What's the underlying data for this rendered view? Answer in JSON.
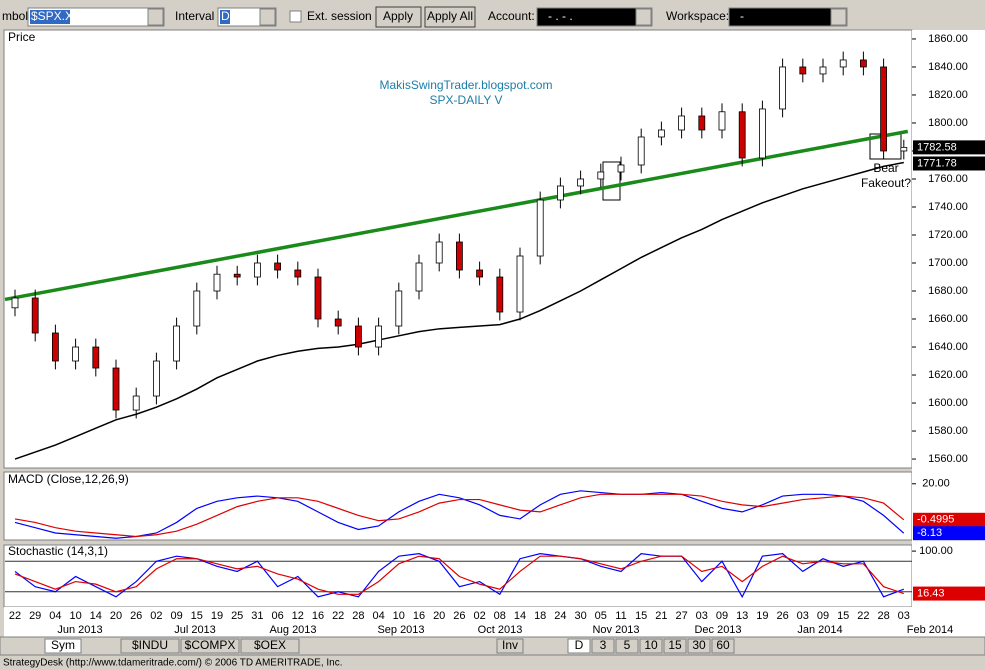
{
  "toolbar": {
    "symbol_label": "mbol",
    "symbol": "$SPX.X",
    "interval_label": "Interval",
    "interval": "D",
    "ext_session": "Ext. session",
    "apply": "Apply",
    "apply_all": "Apply All",
    "account_label": "Account:",
    "account": "-   .   -   .",
    "workspace_label": "Workspace:",
    "workspace": "-"
  },
  "chart_data": {
    "type": "candlestick",
    "panel_label": "Price",
    "annotation": "MakisSwingTrader.blogspot.com",
    "subtitle": "SPX-DAILY  V",
    "note": [
      "Bear",
      "Fakeout?"
    ],
    "categories": [
      "22",
      "29",
      "04",
      "10",
      "14",
      "20",
      "26",
      "02",
      "09",
      "15",
      "19",
      "25",
      "31",
      "06",
      "12",
      "16",
      "22",
      "28",
      "04",
      "10",
      "16",
      "20",
      "26",
      "02",
      "08",
      "14",
      "18",
      "24",
      "30",
      "05",
      "11",
      "15",
      "21",
      "27",
      "03",
      "09",
      "13",
      "19",
      "26",
      "03",
      "09",
      "15",
      "22",
      "28",
      "03"
    ],
    "months": [
      "Jun 2013",
      "Jul 2013",
      "Aug 2013",
      "Sep 2013",
      "Oct 2013",
      "Nov 2013",
      "Dec 2013",
      "Jan 2014",
      "Feb 2014"
    ],
    "open": [
      1668,
      1675,
      1650,
      1630,
      1640,
      1625,
      1595,
      1605,
      1630,
      1655,
      1680,
      1692,
      1690,
      1700,
      1695,
      1690,
      1660,
      1655,
      1640,
      1655,
      1680,
      1700,
      1715,
      1695,
      1690,
      1665,
      1705,
      1745,
      1755,
      1760,
      1765,
      1770,
      1790,
      1795,
      1805,
      1795,
      1808,
      1775,
      1810,
      1840,
      1835,
      1840,
      1845,
      1840,
      1780
    ],
    "high": [
      1681,
      1681,
      1656,
      1646,
      1646,
      1631,
      1611,
      1636,
      1661,
      1686,
      1698,
      1698,
      1706,
      1706,
      1701,
      1696,
      1666,
      1661,
      1661,
      1686,
      1706,
      1721,
      1721,
      1701,
      1696,
      1711,
      1751,
      1761,
      1766,
      1771,
      1776,
      1796,
      1801,
      1811,
      1811,
      1814,
      1814,
      1816,
      1846,
      1846,
      1846,
      1851,
      1851,
      1846,
      1788
    ],
    "low": [
      1662,
      1644,
      1624,
      1624,
      1619,
      1589,
      1589,
      1599,
      1624,
      1649,
      1674,
      1684,
      1684,
      1689,
      1684,
      1654,
      1649,
      1634,
      1634,
      1649,
      1674,
      1694,
      1689,
      1684,
      1659,
      1659,
      1699,
      1739,
      1749,
      1754,
      1759,
      1764,
      1784,
      1789,
      1789,
      1789,
      1769,
      1769,
      1804,
      1829,
      1829,
      1834,
      1834,
      1774,
      1774
    ],
    "close": [
      1675,
      1650,
      1630,
      1640,
      1625,
      1595,
      1605,
      1630,
      1655,
      1680,
      1692,
      1690,
      1700,
      1695,
      1690,
      1660,
      1655,
      1640,
      1655,
      1680,
      1700,
      1715,
      1695,
      1690,
      1665,
      1705,
      1745,
      1755,
      1760,
      1765,
      1770,
      1790,
      1795,
      1805,
      1795,
      1808,
      1775,
      1810,
      1840,
      1835,
      1840,
      1845,
      1840,
      1780,
      1782.58
    ],
    "up_color": "#ffffff",
    "down_color": "#cc0000",
    "ma": {
      "color": "#000000",
      "values": [
        1560,
        1565,
        1570,
        1576,
        1582,
        1588,
        1592,
        1597,
        1603,
        1610,
        1618,
        1624,
        1630,
        1634,
        1637,
        1639,
        1640,
        1642,
        1645,
        1648,
        1651,
        1653,
        1654,
        1655,
        1656,
        1660,
        1666,
        1673,
        1680,
        1688,
        1696,
        1704,
        1711,
        1718,
        1724,
        1731,
        1737,
        1743,
        1748,
        1753,
        1757,
        1761,
        1765,
        1769,
        1771.78
      ]
    },
    "trendline": {
      "color": "#1a8a1a",
      "values": [
        1674,
        1794
      ]
    },
    "ylim": [
      1553.6,
      1866.4
    ],
    "yticks": [
      {
        "value": 1560,
        "label": "1560.00"
      },
      {
        "value": 1580,
        "label": "1580.00"
      },
      {
        "value": 1600,
        "label": "1600.00"
      },
      {
        "value": 1620,
        "label": "1620.00"
      },
      {
        "value": 1640,
        "label": "1640.00"
      },
      {
        "value": 1660,
        "label": "1660.00"
      },
      {
        "value": 1680,
        "label": "1680.00"
      },
      {
        "value": 1700,
        "label": "1700.00"
      },
      {
        "value": 1720,
        "label": "1720.00"
      },
      {
        "value": 1740,
        "label": "1740.00"
      },
      {
        "value": 1760,
        "label": "1760.00"
      },
      {
        "value": 1780,
        "label": "1780.00"
      },
      {
        "value": 1800,
        "label": "1800.00"
      },
      {
        "value": 1820,
        "label": "1820.00"
      },
      {
        "value": 1840,
        "label": "1840.00"
      },
      {
        "value": 1860,
        "label": "1860.00"
      }
    ],
    "macd": {
      "label": "MACD (Close,12,26,9)",
      "ylim": [
        -12,
        26.7
      ],
      "yticks": [
        {
          "value": 20,
          "label": "20.00"
        }
      ],
      "series": [
        {
          "color": "#0000ff",
          "values": [
            -2,
            -5,
            -8,
            -9,
            -10,
            -11,
            -10,
            -8,
            -2,
            6,
            10,
            12,
            13,
            12,
            10,
            4,
            -2,
            -6,
            -4,
            4,
            10,
            14,
            12,
            8,
            2,
            0,
            8,
            14,
            16,
            15,
            14,
            14,
            15,
            14,
            10,
            6,
            4,
            8,
            13,
            14,
            14,
            13,
            10,
            2,
            -8.13
          ]
        },
        {
          "color": "#dd0000",
          "values": [
            0,
            -2,
            -5,
            -7,
            -8,
            -9,
            -10,
            -9,
            -7,
            -3,
            2,
            7,
            10,
            12,
            12,
            10,
            6,
            2,
            -1,
            0,
            4,
            9,
            11,
            11,
            8,
            5,
            4,
            8,
            12,
            14,
            14,
            14,
            14,
            14,
            13,
            10,
            8,
            7,
            9,
            11,
            12,
            13,
            12,
            9,
            -0.4995
          ]
        }
      ]
    },
    "stochastic": {
      "label": "Stochastic (14,3,1)",
      "ylim": [
        -10,
        112
      ],
      "yticks": [
        {
          "value": 100,
          "label": "100.00"
        }
      ],
      "levels": [
        80,
        20
      ],
      "series": [
        {
          "color": "#0000ff",
          "values": [
            60,
            30,
            20,
            50,
            30,
            10,
            40,
            80,
            90,
            85,
            70,
            60,
            80,
            30,
            50,
            10,
            20,
            10,
            60,
            90,
            95,
            80,
            30,
            40,
            15,
            85,
            95,
            90,
            85,
            70,
            60,
            95,
            90,
            90,
            40,
            80,
            10,
            90,
            95,
            60,
            85,
            70,
            80,
            10,
            25
          ]
        },
        {
          "color": "#dd0000",
          "values": [
            55,
            40,
            25,
            40,
            35,
            20,
            30,
            65,
            85,
            85,
            75,
            65,
            70,
            55,
            45,
            25,
            15,
            15,
            40,
            75,
            90,
            85,
            50,
            35,
            25,
            60,
            90,
            90,
            85,
            75,
            65,
            80,
            90,
            90,
            60,
            70,
            40,
            70,
            90,
            75,
            80,
            75,
            75,
            30,
            16.43
          ]
        }
      ]
    }
  },
  "bottom": {
    "tabs": [
      "Sym",
      "$INDU",
      "$COMPX",
      "$OEX"
    ],
    "inv": "Inv",
    "intervals": [
      "D",
      "3",
      "5",
      "10",
      "15",
      "30",
      "60"
    ]
  },
  "status": "StrategyDesk (http://www.tdameritrade.com/) © 2006 TD AMERITRADE, Inc."
}
